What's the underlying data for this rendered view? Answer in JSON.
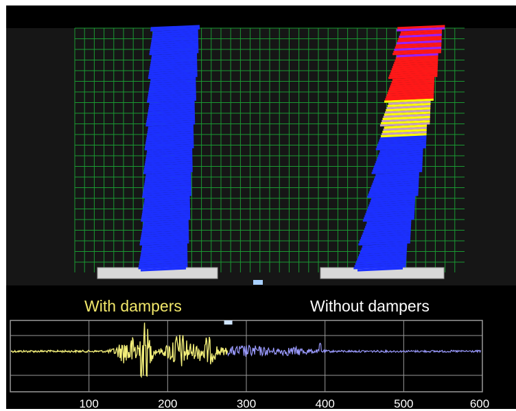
{
  "labels": {
    "with_dampers": "With dampers",
    "without_dampers": "Without dampers"
  },
  "time_axis": {
    "ticks": [
      "100",
      "200",
      "300",
      "400",
      "500",
      "600"
    ],
    "min": 0,
    "max": 600
  },
  "colors": {
    "background": "#161616",
    "grid": "#1a9a32",
    "building_low_stress": "#1c30ff",
    "building_mid_stress": "#ffff00",
    "building_high_stress": "#ff1818",
    "building_max_stress": "#9a20ff",
    "base_plate": "#d8d8d8",
    "label_with": "#f2e86a",
    "label_without": "#ffffff",
    "trace_past": "#f3ef7a",
    "trace_future": "#9b9bff",
    "trace_grid": "#9a9a9a"
  },
  "playback": {
    "current_time": 277
  }
}
